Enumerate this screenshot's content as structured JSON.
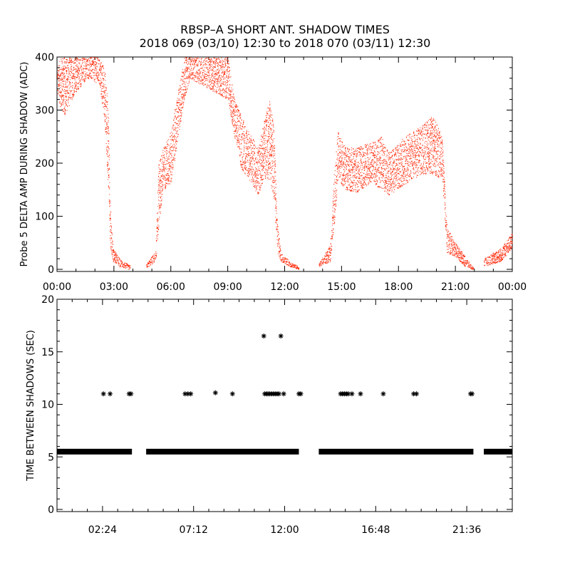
{
  "title_line1": "RBSP–A SHORT ANT. SHADOW TIMES",
  "title_line2": "2018 069 (03/10) 12:30 to 2018 070 (03/11) 12:30",
  "colors": {
    "top_points": "#ff2200",
    "bottom_points": "#000000",
    "axes": "#000000"
  },
  "chart_data": [
    {
      "type": "scatter",
      "title": "",
      "xlabel": "",
      "ylabel": "Probe 5 DELTA AMP DURING SHADOW (ADC)",
      "xlim_hours": [
        0,
        24
      ],
      "ylim": [
        0,
        400
      ],
      "x_ticks": [
        "00:00",
        "03:00",
        "06:00",
        "09:00",
        "12:00",
        "15:00",
        "18:00",
        "21:00",
        "00:00"
      ],
      "y_ticks": [
        0,
        100,
        200,
        300,
        400
      ],
      "grid": false,
      "marker": "dot",
      "envelope": [
        [
          0.0,
          330,
          380
        ],
        [
          0.2,
          300,
          400
        ],
        [
          0.4,
          290,
          400
        ],
        [
          0.9,
          330,
          400
        ],
        [
          1.6,
          360,
          400
        ],
        [
          2.2,
          350,
          400
        ],
        [
          2.5,
          280,
          380
        ],
        [
          2.7,
          150,
          300
        ],
        [
          2.8,
          40,
          120
        ],
        [
          2.95,
          15,
          40
        ],
        [
          3.3,
          5,
          20
        ],
        [
          3.8,
          0,
          8
        ],
        [
          4.7,
          3,
          10
        ],
        [
          5.2,
          15,
          35
        ],
        [
          5.35,
          80,
          200
        ],
        [
          5.6,
          150,
          230
        ],
        [
          6.0,
          160,
          260
        ],
        [
          6.3,
          230,
          320
        ],
        [
          6.7,
          320,
          400
        ],
        [
          7.0,
          360,
          400
        ],
        [
          9.0,
          320,
          400
        ],
        [
          9.3,
          260,
          330
        ],
        [
          9.7,
          190,
          290
        ],
        [
          10.1,
          170,
          260
        ],
        [
          10.6,
          140,
          230
        ],
        [
          10.9,
          170,
          280
        ],
        [
          11.2,
          170,
          320
        ],
        [
          11.45,
          130,
          260
        ],
        [
          11.6,
          30,
          90
        ],
        [
          11.8,
          15,
          30
        ],
        [
          12.3,
          5,
          15
        ],
        [
          12.7,
          0,
          6
        ],
        [
          13.8,
          5,
          12
        ],
        [
          14.4,
          15,
          45
        ],
        [
          14.6,
          80,
          180
        ],
        [
          14.8,
          170,
          260
        ],
        [
          15.2,
          150,
          230
        ],
        [
          15.8,
          145,
          230
        ],
        [
          16.6,
          165,
          240
        ],
        [
          17.1,
          150,
          250
        ],
        [
          17.5,
          140,
          220
        ],
        [
          18.3,
          160,
          250
        ],
        [
          19.2,
          180,
          270
        ],
        [
          19.8,
          180,
          290
        ],
        [
          20.3,
          170,
          250
        ],
        [
          20.55,
          30,
          80
        ],
        [
          21.0,
          25,
          50
        ],
        [
          21.5,
          5,
          25
        ],
        [
          21.9,
          0,
          5
        ],
        [
          22.9,
          10,
          30
        ],
        [
          23.4,
          15,
          40
        ],
        [
          24.0,
          40,
          70
        ]
      ],
      "gaps_hours": [
        [
          3.85,
          4.7
        ],
        [
          12.75,
          13.8
        ],
        [
          21.95,
          22.5
        ]
      ]
    },
    {
      "type": "scatter",
      "title": "",
      "xlabel": "",
      "ylabel": "TIME BETWEEN SHADOWS (SEC)",
      "xlim_hours": [
        0,
        24
      ],
      "ylim": [
        0,
        20
      ],
      "x_ticks": [
        "02:24",
        "07:12",
        "12:00",
        "16:48",
        "21:36"
      ],
      "y_ticks": [
        0,
        5,
        10,
        15,
        20
      ],
      "grid": false,
      "marker": "asterisk",
      "baseline_value": 5.5,
      "baseline_segments_hours": [
        [
          0.0,
          3.95
        ],
        [
          4.7,
          12.75
        ],
        [
          13.8,
          21.95
        ],
        [
          22.5,
          24.0
        ]
      ],
      "outliers": [
        [
          2.45,
          11
        ],
        [
          2.8,
          11
        ],
        [
          3.8,
          11
        ],
        [
          3.9,
          11
        ],
        [
          6.75,
          11
        ],
        [
          6.9,
          11
        ],
        [
          7.05,
          11
        ],
        [
          8.35,
          11.1
        ],
        [
          9.25,
          11
        ],
        [
          10.9,
          16.5
        ],
        [
          11.8,
          16.5
        ],
        [
          10.95,
          11
        ],
        [
          11.05,
          11
        ],
        [
          11.12,
          11
        ],
        [
          11.2,
          11
        ],
        [
          11.3,
          11
        ],
        [
          11.4,
          11
        ],
        [
          11.5,
          11
        ],
        [
          11.6,
          11
        ],
        [
          11.7,
          11
        ],
        [
          11.95,
          11
        ],
        [
          12.75,
          11
        ],
        [
          12.85,
          11
        ],
        [
          14.95,
          11
        ],
        [
          15.05,
          11
        ],
        [
          15.15,
          11
        ],
        [
          15.25,
          11
        ],
        [
          15.35,
          11
        ],
        [
          15.55,
          11
        ],
        [
          16.0,
          11
        ],
        [
          17.2,
          11
        ],
        [
          18.8,
          11
        ],
        [
          18.95,
          11
        ],
        [
          21.8,
          11
        ],
        [
          21.88,
          11
        ]
      ]
    }
  ]
}
